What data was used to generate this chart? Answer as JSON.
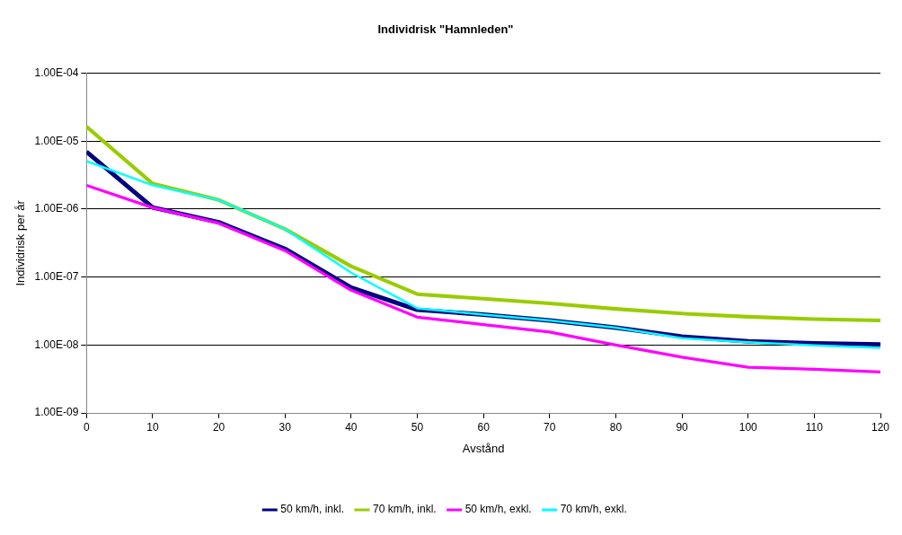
{
  "chart_data": {
    "type": "line",
    "title": "Individrisk \"Hamnleden\"",
    "xlabel": "Avstånd",
    "ylabel": "Individrisk per år",
    "x": [
      0,
      10,
      20,
      30,
      40,
      50,
      60,
      70,
      80,
      90,
      100,
      110,
      120
    ],
    "xlim": [
      0,
      120
    ],
    "xticks": [
      0,
      10,
      20,
      30,
      40,
      50,
      60,
      70,
      80,
      90,
      100,
      110,
      120
    ],
    "ylim": [
      1e-09,
      0.0001
    ],
    "yticks": [
      {
        "value": 1e-09,
        "label": "1.00E-09"
      },
      {
        "value": 1e-08,
        "label": "1.00E-08"
      },
      {
        "value": 1e-07,
        "label": "1.00E-07"
      },
      {
        "value": 1e-06,
        "label": "1.00E-06"
      },
      {
        "value": 1e-05,
        "label": "1.00E-05"
      },
      {
        "value": 0.0001,
        "label": "1.00E-04"
      }
    ],
    "log": "y",
    "grid": "y",
    "legend": "bottom",
    "marker": "none",
    "line_style": "solid",
    "series": [
      {
        "name": "50 km/h, inkl.",
        "color": "#000080",
        "values": [
          7e-06,
          1.06e-06,
          6.4e-07,
          2.6e-07,
          7e-08,
          3.3e-08,
          2.8e-08,
          2.3e-08,
          1.8e-08,
          1.33e-08,
          1.13e-08,
          1.06e-08,
          1.02e-08
        ]
      },
      {
        "name": "70 km/h, inkl.",
        "color": "#99cc00",
        "values": [
          1.64e-05,
          2.37e-06,
          1.36e-06,
          5.1e-07,
          1.44e-07,
          5.6e-08,
          4.8e-08,
          4.1e-08,
          3.4e-08,
          2.9e-08,
          2.6e-08,
          2.4e-08,
          2.3e-08
        ]
      },
      {
        "name": "50 km/h, exkl.",
        "color": "#ff00ff",
        "values": [
          2.24e-06,
          1.05e-06,
          6.2e-07,
          2.45e-07,
          6.4e-08,
          2.57e-08,
          2e-08,
          1.55e-08,
          1e-08,
          6.6e-09,
          4.7e-09,
          4.4e-09,
          4e-09
        ]
      },
      {
        "name": "70 km/h, exkl.",
        "color": "#00ffff",
        "values": [
          5.1e-06,
          2.25e-06,
          1.36e-06,
          5.1e-07,
          1.16e-07,
          3.47e-08,
          2.8e-08,
          2.3e-08,
          1.8e-08,
          1.26e-08,
          1.1e-08,
          9.9e-09,
          9.1e-09
        ]
      }
    ]
  }
}
